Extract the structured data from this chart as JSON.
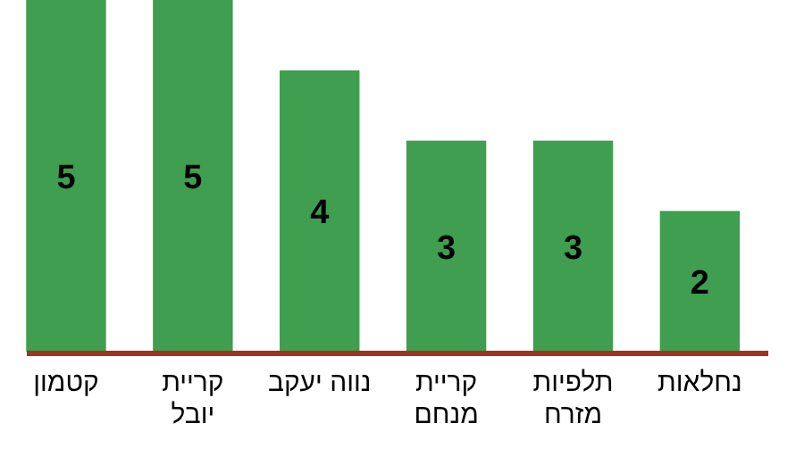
{
  "chart_data": {
    "type": "bar",
    "categories": [
      "קטמון",
      "קריית יובל",
      "נווה יעקב",
      "קריית מנחם",
      "תלפיות מזרח",
      "נחלאות"
    ],
    "values": [
      5,
      5,
      4,
      3,
      3,
      2
    ],
    "color": "#3f9e4f",
    "ylim": [
      0,
      5
    ],
    "data_labels": true,
    "tick_labels": "x"
  }
}
